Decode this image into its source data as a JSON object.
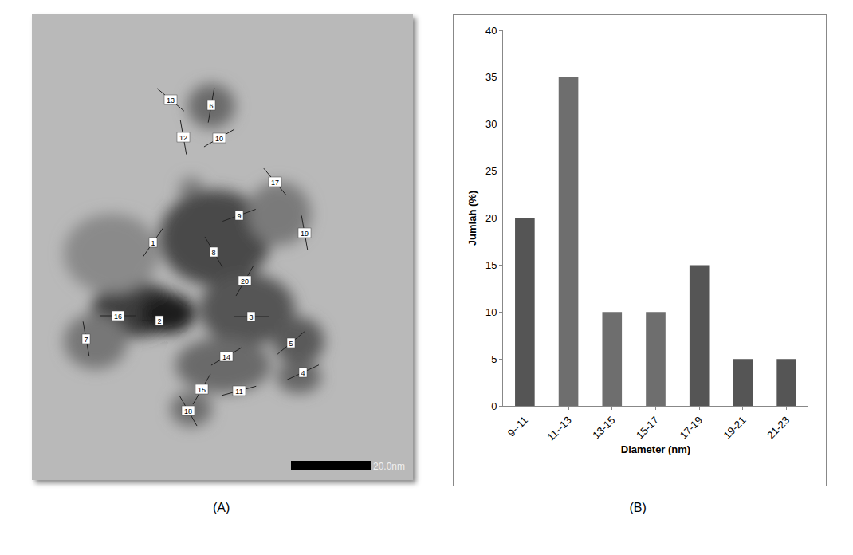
{
  "panel_a": {
    "label": "(A)",
    "scale_bar": "20.0nm",
    "measurement_labels": [
      "13",
      "6",
      "12",
      "10",
      "17",
      "9",
      "19",
      "1",
      "8",
      "20",
      "16",
      "2",
      "3",
      "7",
      "5",
      "14",
      "4",
      "15",
      "11",
      "18"
    ]
  },
  "chart_data": {
    "type": "bar",
    "label": "(B)",
    "categories": [
      "9--11",
      "11--13",
      "13-15",
      "15-17",
      "17-19",
      "19-21",
      "21-23"
    ],
    "values": [
      20,
      35,
      10,
      10,
      15,
      5,
      5
    ],
    "colors": [
      "#555555",
      "#6e6e6e",
      "#6e6e6e",
      "#6e6e6e",
      "#555555",
      "#555555",
      "#555555"
    ],
    "xlabel": "Diameter (nm)",
    "ylabel": "Jumlah (%)",
    "ylim": [
      0,
      40
    ],
    "yticks": [
      0,
      5,
      10,
      15,
      20,
      25,
      30,
      35,
      40
    ],
    "grid": false
  }
}
